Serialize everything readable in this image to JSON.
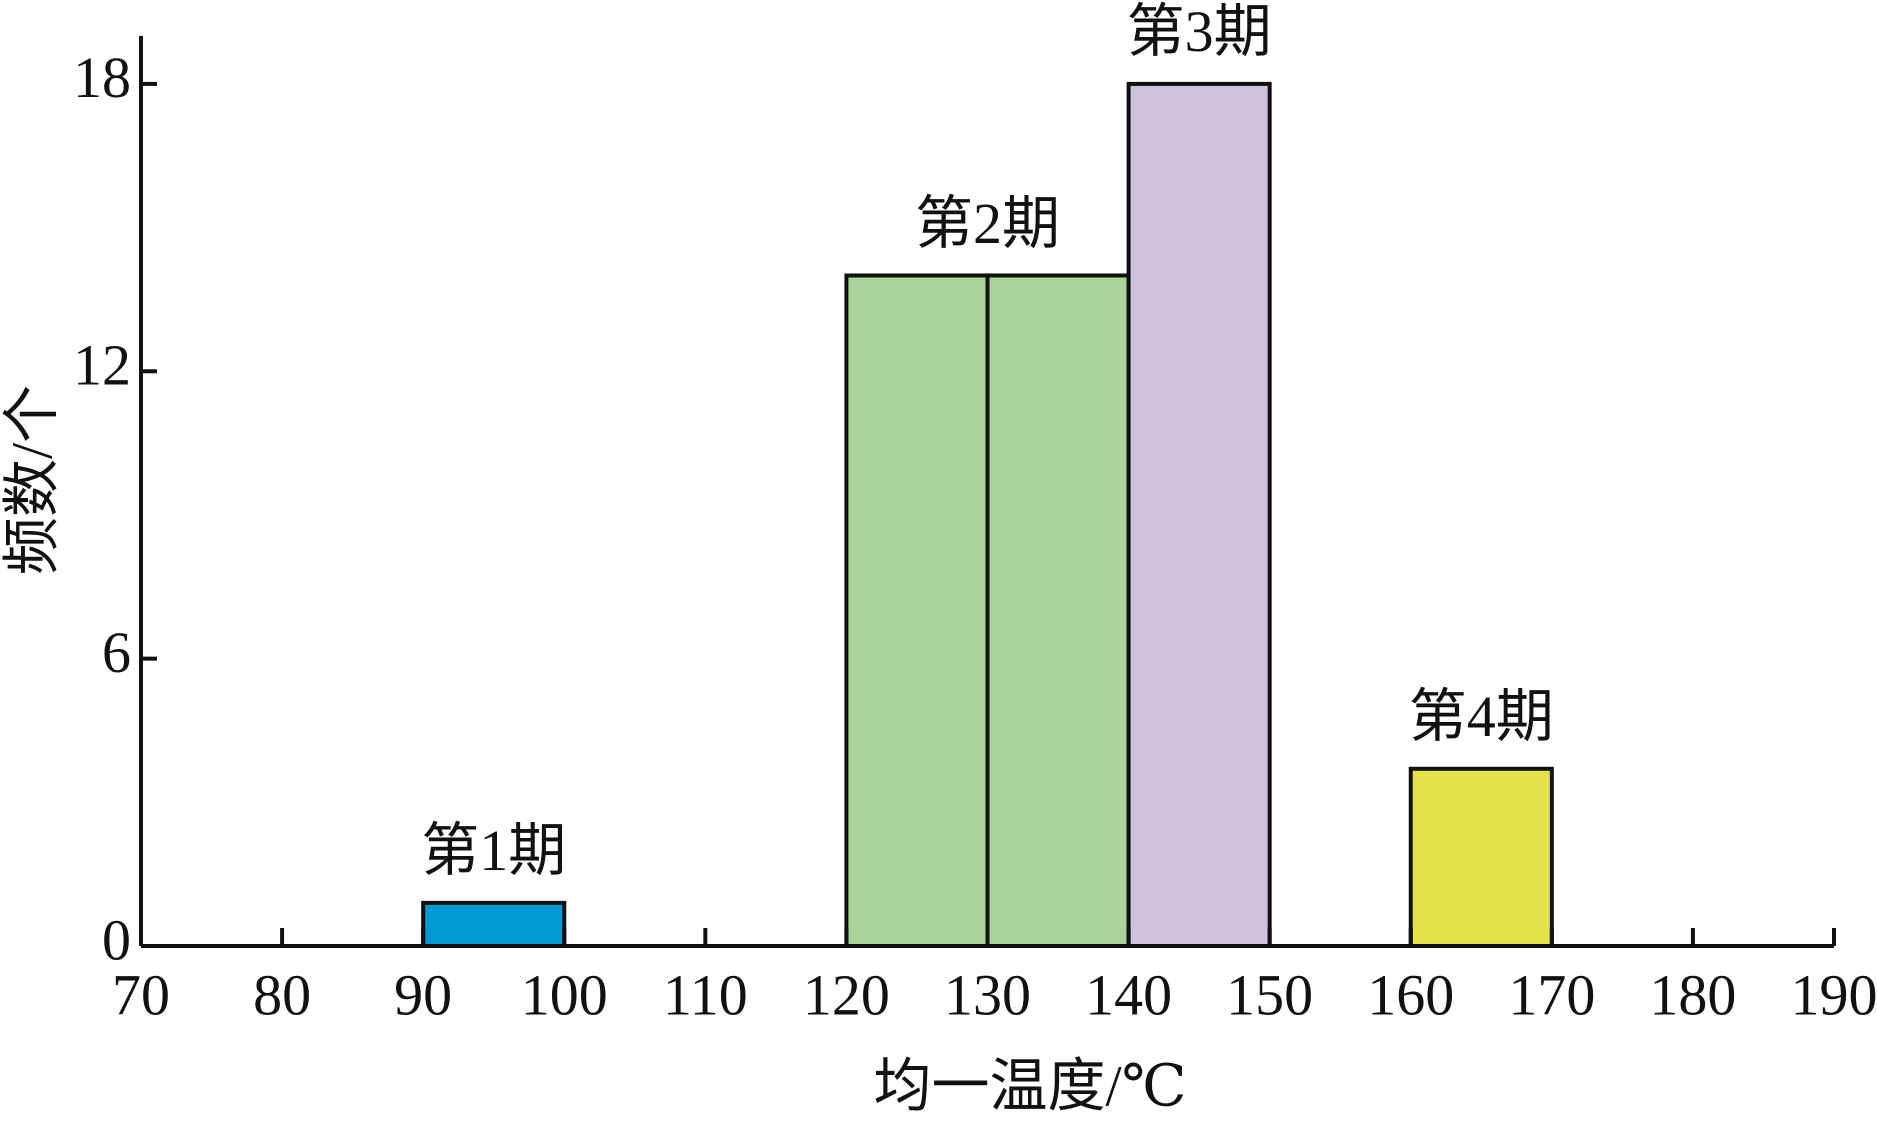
{
  "chart_data": {
    "type": "histogram",
    "xlabel": "均一温度/℃",
    "ylabel": "频数/个",
    "bins": [
      70,
      80,
      90,
      100,
      110,
      120,
      130,
      140,
      150,
      160,
      170,
      180,
      190
    ],
    "series": [
      {
        "name": "第1期",
        "color": "#009ad6",
        "values": [
          null,
          null,
          0.9,
          null,
          null,
          null,
          null,
          null,
          null,
          null,
          null,
          null
        ]
      },
      {
        "name": "第2期",
        "color": "#a8d39a",
        "values": [
          null,
          null,
          null,
          null,
          null,
          14,
          14,
          null,
          null,
          null,
          null,
          null
        ]
      },
      {
        "name": "第3期",
        "color": "#cfc2dd",
        "values": [
          null,
          null,
          null,
          null,
          null,
          null,
          null,
          18,
          null,
          null,
          null,
          null
        ]
      },
      {
        "name": "第4期",
        "color": "#e3e24a",
        "values": [
          null,
          null,
          null,
          null,
          null,
          null,
          null,
          null,
          null,
          3.7,
          null,
          null
        ]
      }
    ],
    "xlim": [
      70,
      190
    ],
    "xticks": [
      70,
      80,
      90,
      100,
      110,
      120,
      130,
      140,
      150,
      160,
      170,
      180,
      190
    ],
    "ylim": [
      0,
      19
    ],
    "yticks": [
      0,
      6,
      12,
      18
    ]
  }
}
